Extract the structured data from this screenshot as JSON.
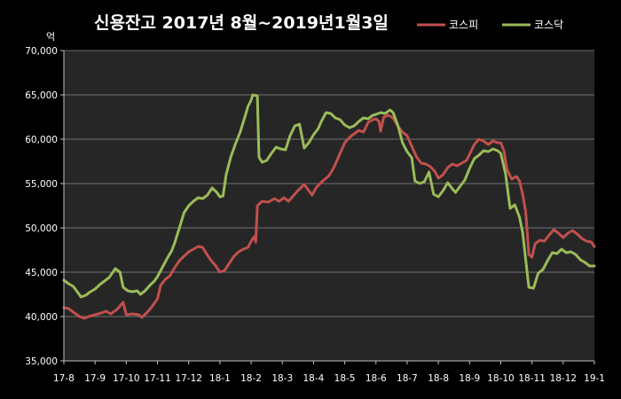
{
  "chart_data": {
    "type": "line",
    "title": "신용잔고 2017년 8월~2019년1월3일",
    "ylabel": "억",
    "xlabel": "",
    "ylim": [
      35000,
      70000
    ],
    "yticks": [
      35000,
      40000,
      45000,
      50000,
      55000,
      60000,
      65000,
      70000
    ],
    "ytick_labels": [
      "35,000",
      "40,000",
      "45,000",
      "50,000",
      "55,000",
      "60,000",
      "65,000",
      "70,000"
    ],
    "categories": [
      "17-8",
      "17-9",
      "17-10",
      "17-11",
      "17-12",
      "18-1",
      "18-2",
      "18-3",
      "18-4",
      "18-5",
      "18-6",
      "18-7",
      "18-8",
      "18-9",
      "18-10",
      "18-11",
      "18-12",
      "19-1"
    ],
    "grid": true,
    "legend_position": "top-right",
    "series": [
      {
        "name": "코스피",
        "color": "#c0504d",
        "values": [
          [
            0.0,
            41000
          ],
          [
            0.15,
            40900
          ],
          [
            0.3,
            40500
          ],
          [
            0.5,
            40000
          ],
          [
            0.65,
            39800
          ],
          [
            0.8,
            40000
          ],
          [
            1.0,
            40200
          ],
          [
            1.2,
            40400
          ],
          [
            1.35,
            40600
          ],
          [
            1.5,
            40300
          ],
          [
            1.7,
            40800
          ],
          [
            1.9,
            41600
          ],
          [
            2.0,
            40200
          ],
          [
            2.2,
            40300
          ],
          [
            2.4,
            40200
          ],
          [
            2.5,
            39900
          ],
          [
            2.65,
            40400
          ],
          [
            2.8,
            41000
          ],
          [
            3.0,
            42000
          ],
          [
            3.1,
            43500
          ],
          [
            3.25,
            44200
          ],
          [
            3.4,
            44600
          ],
          [
            3.55,
            45500
          ],
          [
            3.7,
            46300
          ],
          [
            3.85,
            46800
          ],
          [
            4.0,
            47300
          ],
          [
            4.15,
            47600
          ],
          [
            4.3,
            47900
          ],
          [
            4.45,
            47800
          ],
          [
            4.55,
            47200
          ],
          [
            4.7,
            46400
          ],
          [
            4.85,
            45800
          ],
          [
            5.0,
            45000
          ],
          [
            5.15,
            45200
          ],
          [
            5.3,
            46000
          ],
          [
            5.45,
            46800
          ],
          [
            5.6,
            47300
          ],
          [
            5.75,
            47600
          ],
          [
            5.9,
            47800
          ],
          [
            6.0,
            48500
          ],
          [
            6.1,
            49000
          ],
          [
            6.15,
            48400
          ],
          [
            6.2,
            52500
          ],
          [
            6.35,
            53000
          ],
          [
            6.55,
            52900
          ],
          [
            6.75,
            53300
          ],
          [
            6.9,
            53000
          ],
          [
            7.05,
            53400
          ],
          [
            7.2,
            53000
          ],
          [
            7.35,
            53600
          ],
          [
            7.5,
            54200
          ],
          [
            7.7,
            54900
          ],
          [
            7.85,
            54200
          ],
          [
            7.95,
            53700
          ],
          [
            8.1,
            54600
          ],
          [
            8.3,
            55300
          ],
          [
            8.5,
            55900
          ],
          [
            8.65,
            56800
          ],
          [
            8.8,
            58000
          ],
          [
            9.0,
            59600
          ],
          [
            9.15,
            60200
          ],
          [
            9.3,
            60600
          ],
          [
            9.45,
            61000
          ],
          [
            9.6,
            60800
          ],
          [
            9.75,
            61900
          ],
          [
            9.9,
            62200
          ],
          [
            10.0,
            62300
          ],
          [
            10.1,
            62000
          ],
          [
            10.15,
            60900
          ],
          [
            10.25,
            62500
          ],
          [
            10.4,
            62700
          ],
          [
            10.55,
            62400
          ],
          [
            10.7,
            61500
          ],
          [
            10.85,
            60800
          ],
          [
            11.0,
            60400
          ],
          [
            11.15,
            59200
          ],
          [
            11.3,
            58000
          ],
          [
            11.45,
            57300
          ],
          [
            11.6,
            57200
          ],
          [
            11.75,
            56900
          ],
          [
            11.9,
            56300
          ],
          [
            12.0,
            55600
          ],
          [
            12.15,
            56000
          ],
          [
            12.3,
            56800
          ],
          [
            12.45,
            57200
          ],
          [
            12.6,
            57000
          ],
          [
            12.75,
            57300
          ],
          [
            12.9,
            57600
          ],
          [
            13.0,
            58300
          ],
          [
            13.15,
            59400
          ],
          [
            13.3,
            60000
          ],
          [
            13.45,
            59800
          ],
          [
            13.6,
            59400
          ],
          [
            13.75,
            59800
          ],
          [
            13.9,
            59600
          ],
          [
            14.0,
            59600
          ],
          [
            14.1,
            58700
          ],
          [
            14.2,
            56600
          ],
          [
            14.35,
            55500
          ],
          [
            14.5,
            55800
          ],
          [
            14.6,
            55300
          ],
          [
            14.7,
            53800
          ],
          [
            14.8,
            51800
          ],
          [
            14.9,
            47000
          ],
          [
            15.0,
            46700
          ],
          [
            15.1,
            48200
          ],
          [
            15.25,
            48600
          ],
          [
            15.4,
            48500
          ],
          [
            15.55,
            49200
          ],
          [
            15.7,
            49800
          ],
          [
            15.85,
            49400
          ],
          [
            16.0,
            48900
          ],
          [
            16.15,
            49400
          ],
          [
            16.3,
            49700
          ],
          [
            16.45,
            49300
          ],
          [
            16.6,
            48800
          ],
          [
            16.75,
            48500
          ],
          [
            16.9,
            48400
          ],
          [
            17.0,
            47900
          ]
        ]
      },
      {
        "name": "코스닥",
        "color": "#9bbb59",
        "values": [
          [
            0.0,
            44100
          ],
          [
            0.15,
            43700
          ],
          [
            0.3,
            43400
          ],
          [
            0.45,
            42700
          ],
          [
            0.55,
            42200
          ],
          [
            0.7,
            42400
          ],
          [
            0.85,
            42800
          ],
          [
            1.0,
            43100
          ],
          [
            1.15,
            43600
          ],
          [
            1.3,
            44000
          ],
          [
            1.45,
            44400
          ],
          [
            1.55,
            44900
          ],
          [
            1.65,
            45400
          ],
          [
            1.8,
            45000
          ],
          [
            1.9,
            43300
          ],
          [
            2.05,
            42900
          ],
          [
            2.2,
            42800
          ],
          [
            2.35,
            42900
          ],
          [
            2.45,
            42500
          ],
          [
            2.6,
            42900
          ],
          [
            2.75,
            43500
          ],
          [
            2.9,
            44000
          ],
          [
            3.0,
            44500
          ],
          [
            3.15,
            45500
          ],
          [
            3.3,
            46500
          ],
          [
            3.45,
            47400
          ],
          [
            3.55,
            48300
          ],
          [
            3.7,
            50000
          ],
          [
            3.85,
            51700
          ],
          [
            4.0,
            52500
          ],
          [
            4.15,
            53000
          ],
          [
            4.3,
            53400
          ],
          [
            4.45,
            53300
          ],
          [
            4.6,
            53700
          ],
          [
            4.75,
            54500
          ],
          [
            4.9,
            54000
          ],
          [
            5.0,
            53500
          ],
          [
            5.1,
            53600
          ],
          [
            5.2,
            56000
          ],
          [
            5.35,
            58000
          ],
          [
            5.5,
            59500
          ],
          [
            5.65,
            60800
          ],
          [
            5.8,
            62500
          ],
          [
            5.9,
            63700
          ],
          [
            6.0,
            64400
          ],
          [
            6.05,
            65000
          ],
          [
            6.2,
            64900
          ],
          [
            6.25,
            58000
          ],
          [
            6.35,
            57400
          ],
          [
            6.5,
            57600
          ],
          [
            6.65,
            58400
          ],
          [
            6.8,
            59100
          ],
          [
            6.95,
            58900
          ],
          [
            7.1,
            58800
          ],
          [
            7.25,
            60400
          ],
          [
            7.4,
            61500
          ],
          [
            7.55,
            61700
          ],
          [
            7.7,
            59000
          ],
          [
            7.85,
            59600
          ],
          [
            8.0,
            60500
          ],
          [
            8.15,
            61200
          ],
          [
            8.25,
            62000
          ],
          [
            8.4,
            63000
          ],
          [
            8.55,
            62900
          ],
          [
            8.7,
            62400
          ],
          [
            8.85,
            62200
          ],
          [
            9.0,
            61600
          ],
          [
            9.15,
            61300
          ],
          [
            9.3,
            61500
          ],
          [
            9.45,
            62000
          ],
          [
            9.6,
            62400
          ],
          [
            9.75,
            62300
          ],
          [
            9.9,
            62700
          ],
          [
            10.0,
            62800
          ],
          [
            10.15,
            63000
          ],
          [
            10.3,
            62900
          ],
          [
            10.45,
            63300
          ],
          [
            10.55,
            63000
          ],
          [
            10.7,
            61600
          ],
          [
            10.85,
            59600
          ],
          [
            11.0,
            58600
          ],
          [
            11.15,
            57900
          ],
          [
            11.25,
            55300
          ],
          [
            11.4,
            55000
          ],
          [
            11.55,
            55200
          ],
          [
            11.7,
            56300
          ],
          [
            11.85,
            53800
          ],
          [
            12.0,
            53500
          ],
          [
            12.15,
            54200
          ],
          [
            12.3,
            55100
          ],
          [
            12.45,
            54400
          ],
          [
            12.55,
            54000
          ],
          [
            12.7,
            54700
          ],
          [
            12.85,
            55400
          ],
          [
            13.0,
            56700
          ],
          [
            13.15,
            57800
          ],
          [
            13.3,
            58200
          ],
          [
            13.45,
            58700
          ],
          [
            13.6,
            58600
          ],
          [
            13.75,
            58900
          ],
          [
            13.9,
            58700
          ],
          [
            14.0,
            58400
          ],
          [
            14.15,
            56200
          ],
          [
            14.3,
            52200
          ],
          [
            14.45,
            52600
          ],
          [
            14.6,
            51200
          ],
          [
            14.7,
            49500
          ],
          [
            14.8,
            46400
          ],
          [
            14.9,
            43300
          ],
          [
            15.05,
            43200
          ],
          [
            15.2,
            44900
          ],
          [
            15.35,
            45300
          ],
          [
            15.5,
            46300
          ],
          [
            15.65,
            47200
          ],
          [
            15.8,
            47100
          ],
          [
            15.95,
            47600
          ],
          [
            16.1,
            47200
          ],
          [
            16.25,
            47300
          ],
          [
            16.4,
            47000
          ],
          [
            16.55,
            46400
          ],
          [
            16.7,
            46100
          ],
          [
            16.85,
            45700
          ],
          [
            17.0,
            45700
          ]
        ]
      }
    ]
  }
}
